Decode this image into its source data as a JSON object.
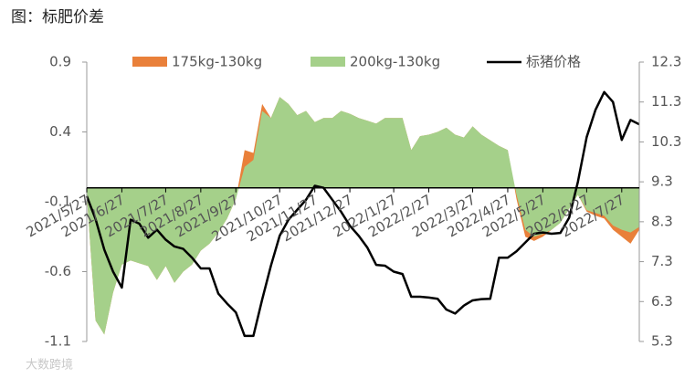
{
  "chart_data": {
    "type": "area",
    "title": "图：标肥价差",
    "watermark": "大数跨境",
    "categories": [
      "2021/5/27",
      null,
      null,
      null,
      "2021/6/27",
      null,
      null,
      null,
      null,
      "2021/7/27",
      null,
      null,
      null,
      "2021/8/27",
      null,
      null,
      null,
      "2021/9/27",
      null,
      null,
      null,
      null,
      "2021/10/27",
      null,
      null,
      null,
      "2021/11/27",
      null,
      null,
      null,
      "2021/12/27",
      null,
      null,
      null,
      null,
      "2022/1/27",
      null,
      null,
      null,
      "2022/2/27",
      null,
      null,
      null,
      null,
      "2022/3/27",
      null,
      null,
      null,
      "2022/4/27",
      null,
      null,
      null,
      "2022/5/27",
      null,
      null,
      null,
      null,
      "2022/6/27",
      null,
      null,
      null,
      "2022/7/27",
      null,
      null
    ],
    "series": [
      {
        "name": "175kg-130kg",
        "type": "area",
        "color": "#e9803a",
        "values": [
          -0.05,
          -0.95,
          -1.05,
          -0.75,
          -0.55,
          -0.52,
          -0.54,
          -0.56,
          -0.66,
          -0.56,
          -0.68,
          -0.6,
          -0.55,
          -0.45,
          -0.4,
          -0.32,
          -0.22,
          -0.08,
          0.27,
          0.25,
          0.6,
          0.5,
          0.65,
          0.6,
          0.52,
          0.55,
          0.47,
          0.5,
          0.5,
          0.55,
          0.53,
          0.5,
          0.48,
          0.46,
          0.5,
          0.5,
          0.5,
          0.27,
          0.37,
          0.38,
          0.4,
          0.43,
          0.38,
          0.36,
          0.44,
          0.38,
          0.34,
          0.3,
          0.27,
          -0.08,
          -0.35,
          -0.38,
          -0.35,
          -0.3,
          -0.25,
          -0.15,
          -0.05,
          -0.17,
          -0.2,
          -0.22,
          -0.3,
          -0.35,
          -0.4,
          -0.3
        ]
      },
      {
        "name": "200kg-130kg",
        "type": "area",
        "color": "#a5d08a",
        "values": [
          -0.05,
          -0.95,
          -1.05,
          -0.75,
          -0.55,
          -0.52,
          -0.54,
          -0.56,
          -0.66,
          -0.56,
          -0.68,
          -0.6,
          -0.55,
          -0.45,
          -0.4,
          -0.32,
          -0.22,
          -0.08,
          0.15,
          0.2,
          0.55,
          0.5,
          0.65,
          0.6,
          0.52,
          0.55,
          0.47,
          0.5,
          0.5,
          0.55,
          0.53,
          0.5,
          0.48,
          0.46,
          0.5,
          0.5,
          0.5,
          0.27,
          0.37,
          0.38,
          0.4,
          0.43,
          0.38,
          0.36,
          0.44,
          0.38,
          0.34,
          0.3,
          0.27,
          -0.05,
          -0.3,
          -0.35,
          -0.33,
          -0.3,
          -0.25,
          -0.15,
          -0.05,
          -0.16,
          -0.18,
          -0.2,
          -0.27,
          -0.3,
          -0.32,
          -0.28
        ]
      },
      {
        "name": "标猪价格",
        "type": "line",
        "axis": "y2",
        "color": "#000000",
        "values": [
          8.94,
          8.37,
          7.6,
          7.05,
          6.65,
          8.35,
          8.25,
          7.9,
          8.1,
          7.85,
          7.68,
          7.62,
          7.4,
          7.13,
          7.13,
          6.5,
          6.25,
          6.03,
          5.44,
          5.44,
          6.35,
          7.2,
          7.95,
          8.35,
          8.6,
          8.85,
          9.2,
          9.15,
          8.85,
          8.55,
          8.2,
          7.95,
          7.65,
          7.22,
          7.2,
          7.05,
          6.99,
          6.42,
          6.42,
          6.4,
          6.37,
          6.1,
          6.0,
          6.2,
          6.33,
          6.36,
          6.37,
          7.4,
          7.4,
          7.56,
          7.78,
          8.0,
          8.03,
          8.0,
          8.02,
          8.4,
          9.3,
          10.42,
          11.1,
          11.55,
          11.3,
          10.35,
          10.85,
          10.74
        ]
      }
    ],
    "ylim": [
      -1.1,
      0.9
    ],
    "yticks": [
      0.9,
      0.4,
      -0.1,
      -0.6,
      -1.1
    ],
    "y2lim": [
      5.3,
      12.3
    ],
    "y2ticks": [
      12.3,
      11.3,
      10.3,
      9.3,
      8.3,
      7.3,
      6.3,
      5.3
    ],
    "legend": "top"
  }
}
